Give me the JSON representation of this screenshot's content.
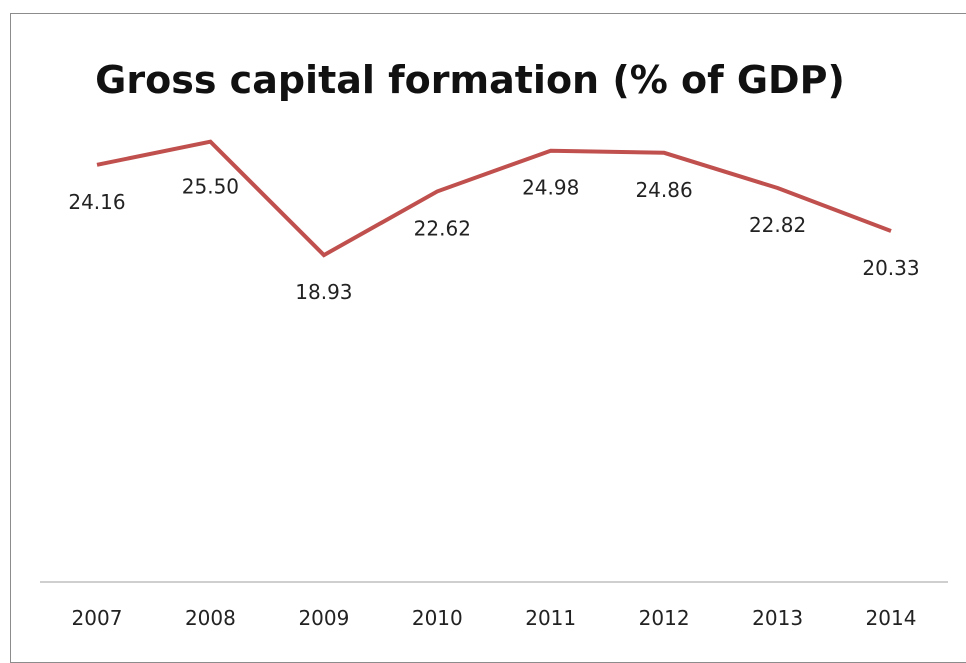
{
  "chart_data": {
    "type": "line",
    "title": "Gross capital formation (% of GDP)",
    "categories": [
      "2007",
      "2008",
      "2009",
      "2010",
      "2011",
      "2012",
      "2013",
      "2014"
    ],
    "series": [
      {
        "values": [
          24.16,
          25.5,
          18.93,
          22.62,
          24.98,
          24.86,
          22.82,
          20.33
        ],
        "labels": [
          "24.16",
          "25.50",
          "18.93",
          "22.62",
          "24.98",
          "24.86",
          "22.82",
          "20.33"
        ],
        "color": "#c0504d"
      }
    ],
    "xlabel": "",
    "ylabel": "",
    "ylim": [
      0,
      30
    ],
    "grid": false,
    "legend": "none"
  }
}
